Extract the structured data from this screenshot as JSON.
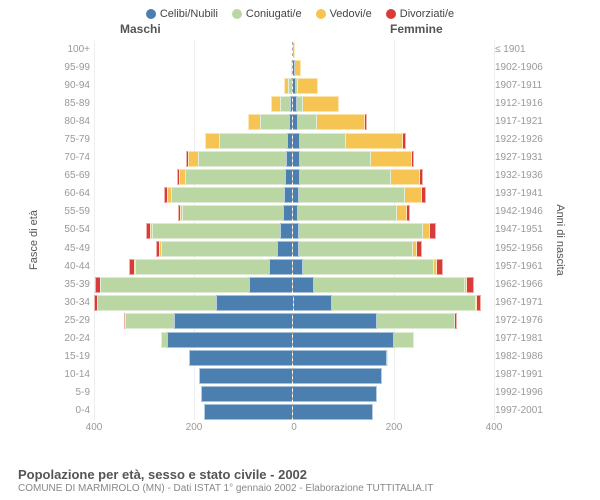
{
  "legend": {
    "items": [
      {
        "label": "Celibi/Nubili",
        "color": "#4a7fb0"
      },
      {
        "label": "Coniugati/e",
        "color": "#b9d6a3"
      },
      {
        "label": "Vedovi/e",
        "color": "#f5c452"
      },
      {
        "label": "Divorziati/e",
        "color": "#d93a3a"
      }
    ]
  },
  "headers": {
    "male": "Maschi",
    "female": "Femmine"
  },
  "axis_titles": {
    "left": "Fasce di età",
    "right": "Anni di nascita"
  },
  "caption": {
    "title": "Popolazione per età, sesso e stato civile - 2002",
    "subtitle": "COMUNE DI MARMIROLO (MN) - Dati ISTAT 1° gennaio 2002 - Elaborazione TUTTITALIA.IT"
  },
  "xaxis": {
    "max": 400,
    "ticks": [
      400,
      200,
      0,
      200,
      400
    ]
  },
  "chart": {
    "categories": [
      "celibi",
      "coniugati",
      "vedovi",
      "divorziati"
    ],
    "colors": {
      "celibi": "#4a7fb0",
      "coniugati": "#b9d6a3",
      "vedovi": "#f5c452",
      "divorziati": "#d93a3a"
    },
    "background": "#ffffff",
    "rows": [
      {
        "age": "100+",
        "year": "≤ 1901",
        "m": {
          "celibi": 0,
          "coniugati": 0,
          "vedovi": 0,
          "divorziati": 0
        },
        "f": {
          "celibi": 0,
          "coniugati": 0,
          "vedovi": 1,
          "divorziati": 0
        }
      },
      {
        "age": "95-99",
        "year": "1902-1906",
        "m": {
          "celibi": 0,
          "coniugati": 0,
          "vedovi": 1,
          "divorziati": 0
        },
        "f": {
          "celibi": 1,
          "coniugati": 0,
          "vedovi": 10,
          "divorziati": 0
        }
      },
      {
        "age": "90-94",
        "year": "1907-1911",
        "m": {
          "celibi": 1,
          "coniugati": 3,
          "vedovi": 6,
          "divorziati": 0
        },
        "f": {
          "celibi": 3,
          "coniugati": 2,
          "vedovi": 38,
          "divorziati": 0
        }
      },
      {
        "age": "85-89",
        "year": "1912-1916",
        "m": {
          "celibi": 3,
          "coniugati": 18,
          "vedovi": 15,
          "divorziati": 0
        },
        "f": {
          "celibi": 5,
          "coniugati": 10,
          "vedovi": 70,
          "divorziati": 0
        }
      },
      {
        "age": "80-84",
        "year": "1917-1921",
        "m": {
          "celibi": 5,
          "coniugati": 55,
          "vedovi": 22,
          "divorziati": 0
        },
        "f": {
          "celibi": 8,
          "coniugati": 35,
          "vedovi": 95,
          "divorziati": 2
        }
      },
      {
        "age": "75-79",
        "year": "1922-1926",
        "m": {
          "celibi": 8,
          "coniugati": 135,
          "vedovi": 25,
          "divorziati": 0
        },
        "f": {
          "celibi": 12,
          "coniugati": 90,
          "vedovi": 112,
          "divorziati": 4
        }
      },
      {
        "age": "70-74",
        "year": "1927-1931",
        "m": {
          "celibi": 10,
          "coniugati": 175,
          "vedovi": 18,
          "divorziati": 1
        },
        "f": {
          "celibi": 12,
          "coniugati": 140,
          "vedovi": 80,
          "divorziati": 2
        }
      },
      {
        "age": "65-69",
        "year": "1932-1936",
        "m": {
          "celibi": 12,
          "coniugati": 198,
          "vedovi": 10,
          "divorziati": 2
        },
        "f": {
          "celibi": 12,
          "coniugati": 180,
          "vedovi": 55,
          "divorziati": 4
        }
      },
      {
        "age": "60-64",
        "year": "1937-1941",
        "m": {
          "celibi": 14,
          "coniugati": 225,
          "vedovi": 6,
          "divorziati": 3
        },
        "f": {
          "celibi": 10,
          "coniugati": 210,
          "vedovi": 32,
          "divorziati": 5
        }
      },
      {
        "age": "55-59",
        "year": "1942-1946",
        "m": {
          "celibi": 16,
          "coniugati": 200,
          "vedovi": 3,
          "divorziati": 2
        },
        "f": {
          "celibi": 8,
          "coniugati": 195,
          "vedovi": 18,
          "divorziati": 4
        }
      },
      {
        "age": "50-54",
        "year": "1947-1951",
        "m": {
          "celibi": 22,
          "coniugati": 255,
          "vedovi": 2,
          "divorziati": 6
        },
        "f": {
          "celibi": 10,
          "coniugati": 245,
          "vedovi": 12,
          "divorziati": 10
        }
      },
      {
        "age": "45-49",
        "year": "1952-1956",
        "m": {
          "celibi": 28,
          "coniugati": 230,
          "vedovi": 2,
          "divorziati": 5
        },
        "f": {
          "celibi": 10,
          "coniugati": 225,
          "vedovi": 6,
          "divorziati": 8
        }
      },
      {
        "age": "40-44",
        "year": "1957-1961",
        "m": {
          "celibi": 45,
          "coniugati": 265,
          "vedovi": 1,
          "divorziati": 8
        },
        "f": {
          "celibi": 18,
          "coniugati": 260,
          "vedovi": 4,
          "divorziati": 10
        }
      },
      {
        "age": "35-39",
        "year": "1962-1966",
        "m": {
          "celibi": 85,
          "coniugati": 295,
          "vedovi": 0,
          "divorziati": 8
        },
        "f": {
          "celibi": 40,
          "coniugati": 300,
          "vedovi": 2,
          "divorziati": 12
        }
      },
      {
        "age": "30-34",
        "year": "1967-1971",
        "m": {
          "celibi": 155,
          "coniugati": 240,
          "vedovi": 0,
          "divorziati": 4
        },
        "f": {
          "celibi": 75,
          "coniugati": 285,
          "vedovi": 1,
          "divorziati": 6
        }
      },
      {
        "age": "25-29",
        "year": "1972-1976",
        "m": {
          "celibi": 235,
          "coniugati": 95,
          "vedovi": 0,
          "divorziati": 1
        },
        "f": {
          "celibi": 165,
          "coniugati": 155,
          "vedovi": 0,
          "divorziati": 2
        }
      },
      {
        "age": "20-24",
        "year": "1977-1981",
        "m": {
          "celibi": 248,
          "coniugati": 10,
          "vedovi": 0,
          "divorziati": 0
        },
        "f": {
          "celibi": 200,
          "coniugati": 38,
          "vedovi": 0,
          "divorziati": 0
        }
      },
      {
        "age": "15-19",
        "year": "1982-1986",
        "m": {
          "celibi": 205,
          "coniugati": 0,
          "vedovi": 0,
          "divorziati": 0
        },
        "f": {
          "celibi": 185,
          "coniugati": 1,
          "vedovi": 0,
          "divorziati": 0
        }
      },
      {
        "age": "10-14",
        "year": "1987-1991",
        "m": {
          "celibi": 185,
          "coniugati": 0,
          "vedovi": 0,
          "divorziati": 0
        },
        "f": {
          "celibi": 175,
          "coniugati": 0,
          "vedovi": 0,
          "divorziati": 0
        }
      },
      {
        "age": "5-9",
        "year": "1992-1996",
        "m": {
          "celibi": 180,
          "coniugati": 0,
          "vedovi": 0,
          "divorziati": 0
        },
        "f": {
          "celibi": 165,
          "coniugati": 0,
          "vedovi": 0,
          "divorziati": 0
        }
      },
      {
        "age": "0-4",
        "year": "1997-2001",
        "m": {
          "celibi": 175,
          "coniugati": 0,
          "vedovi": 0,
          "divorziati": 0
        },
        "f": {
          "celibi": 158,
          "coniugati": 0,
          "vedovi": 0,
          "divorziati": 0
        }
      }
    ]
  }
}
